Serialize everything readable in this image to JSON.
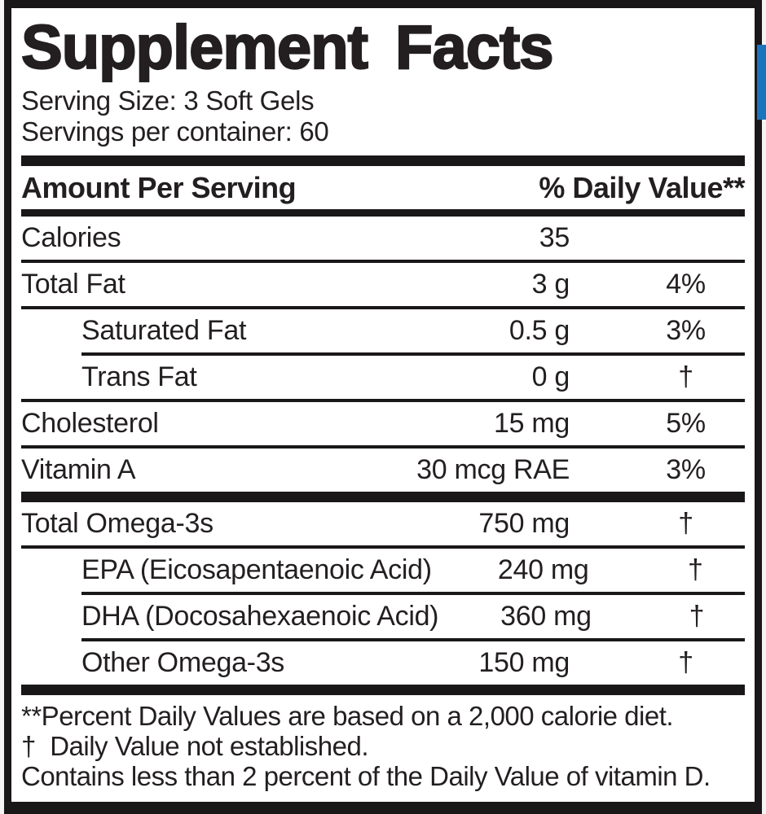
{
  "colors": {
    "accent_blue": "#1b75bc",
    "ink": "#231f20"
  },
  "label": {
    "title": "Supplement Facts",
    "serving_size": "Serving Size: 3 Soft Gels",
    "servings_per_container": "Servings per container: 60",
    "columns": {
      "amount_header": "Amount Per Serving",
      "dv_header": "% Daily Value**"
    },
    "rows_main": [
      {
        "name": "Calories",
        "amount": "35",
        "dv": "",
        "indent": false,
        "sep": "none"
      },
      {
        "name": "Total Fat",
        "amount": "3 g",
        "dv": "4%",
        "indent": false,
        "sep": "full"
      },
      {
        "name": "Saturated Fat",
        "amount": "0.5 g",
        "dv": "3%",
        "indent": true,
        "sep": "full"
      },
      {
        "name": "Trans Fat",
        "amount": "0 g",
        "dv": "†",
        "indent": true,
        "sep": "indent"
      },
      {
        "name": "Cholesterol",
        "amount": "15 mg",
        "dv": "5%",
        "indent": false,
        "sep": "full"
      },
      {
        "name": "Vitamin A",
        "amount": "30 mcg RAE",
        "dv": "3%",
        "indent": false,
        "sep": "full"
      }
    ],
    "rows_omega": [
      {
        "name": "Total Omega-3s",
        "amount": "750 mg",
        "dv": "†",
        "indent": false,
        "sep": "none"
      },
      {
        "name": "EPA (Eicosapentaenoic Acid)",
        "amount": "240 mg",
        "dv": "†",
        "indent": true,
        "sep": "full"
      },
      {
        "name": "DHA (Docosahexaenoic Acid)",
        "amount": "360 mg",
        "dv": "†",
        "indent": true,
        "sep": "indent"
      },
      {
        "name": "Other Omega-3s",
        "amount": "150 mg",
        "dv": "†",
        "indent": true,
        "sep": "indent"
      }
    ],
    "footnotes": [
      "**Percent Daily Values are based on a 2,000 calorie diet.",
      "†  Daily Value not established.",
      "Contains less than 2 percent of the Daily Value of vitamin D."
    ]
  }
}
